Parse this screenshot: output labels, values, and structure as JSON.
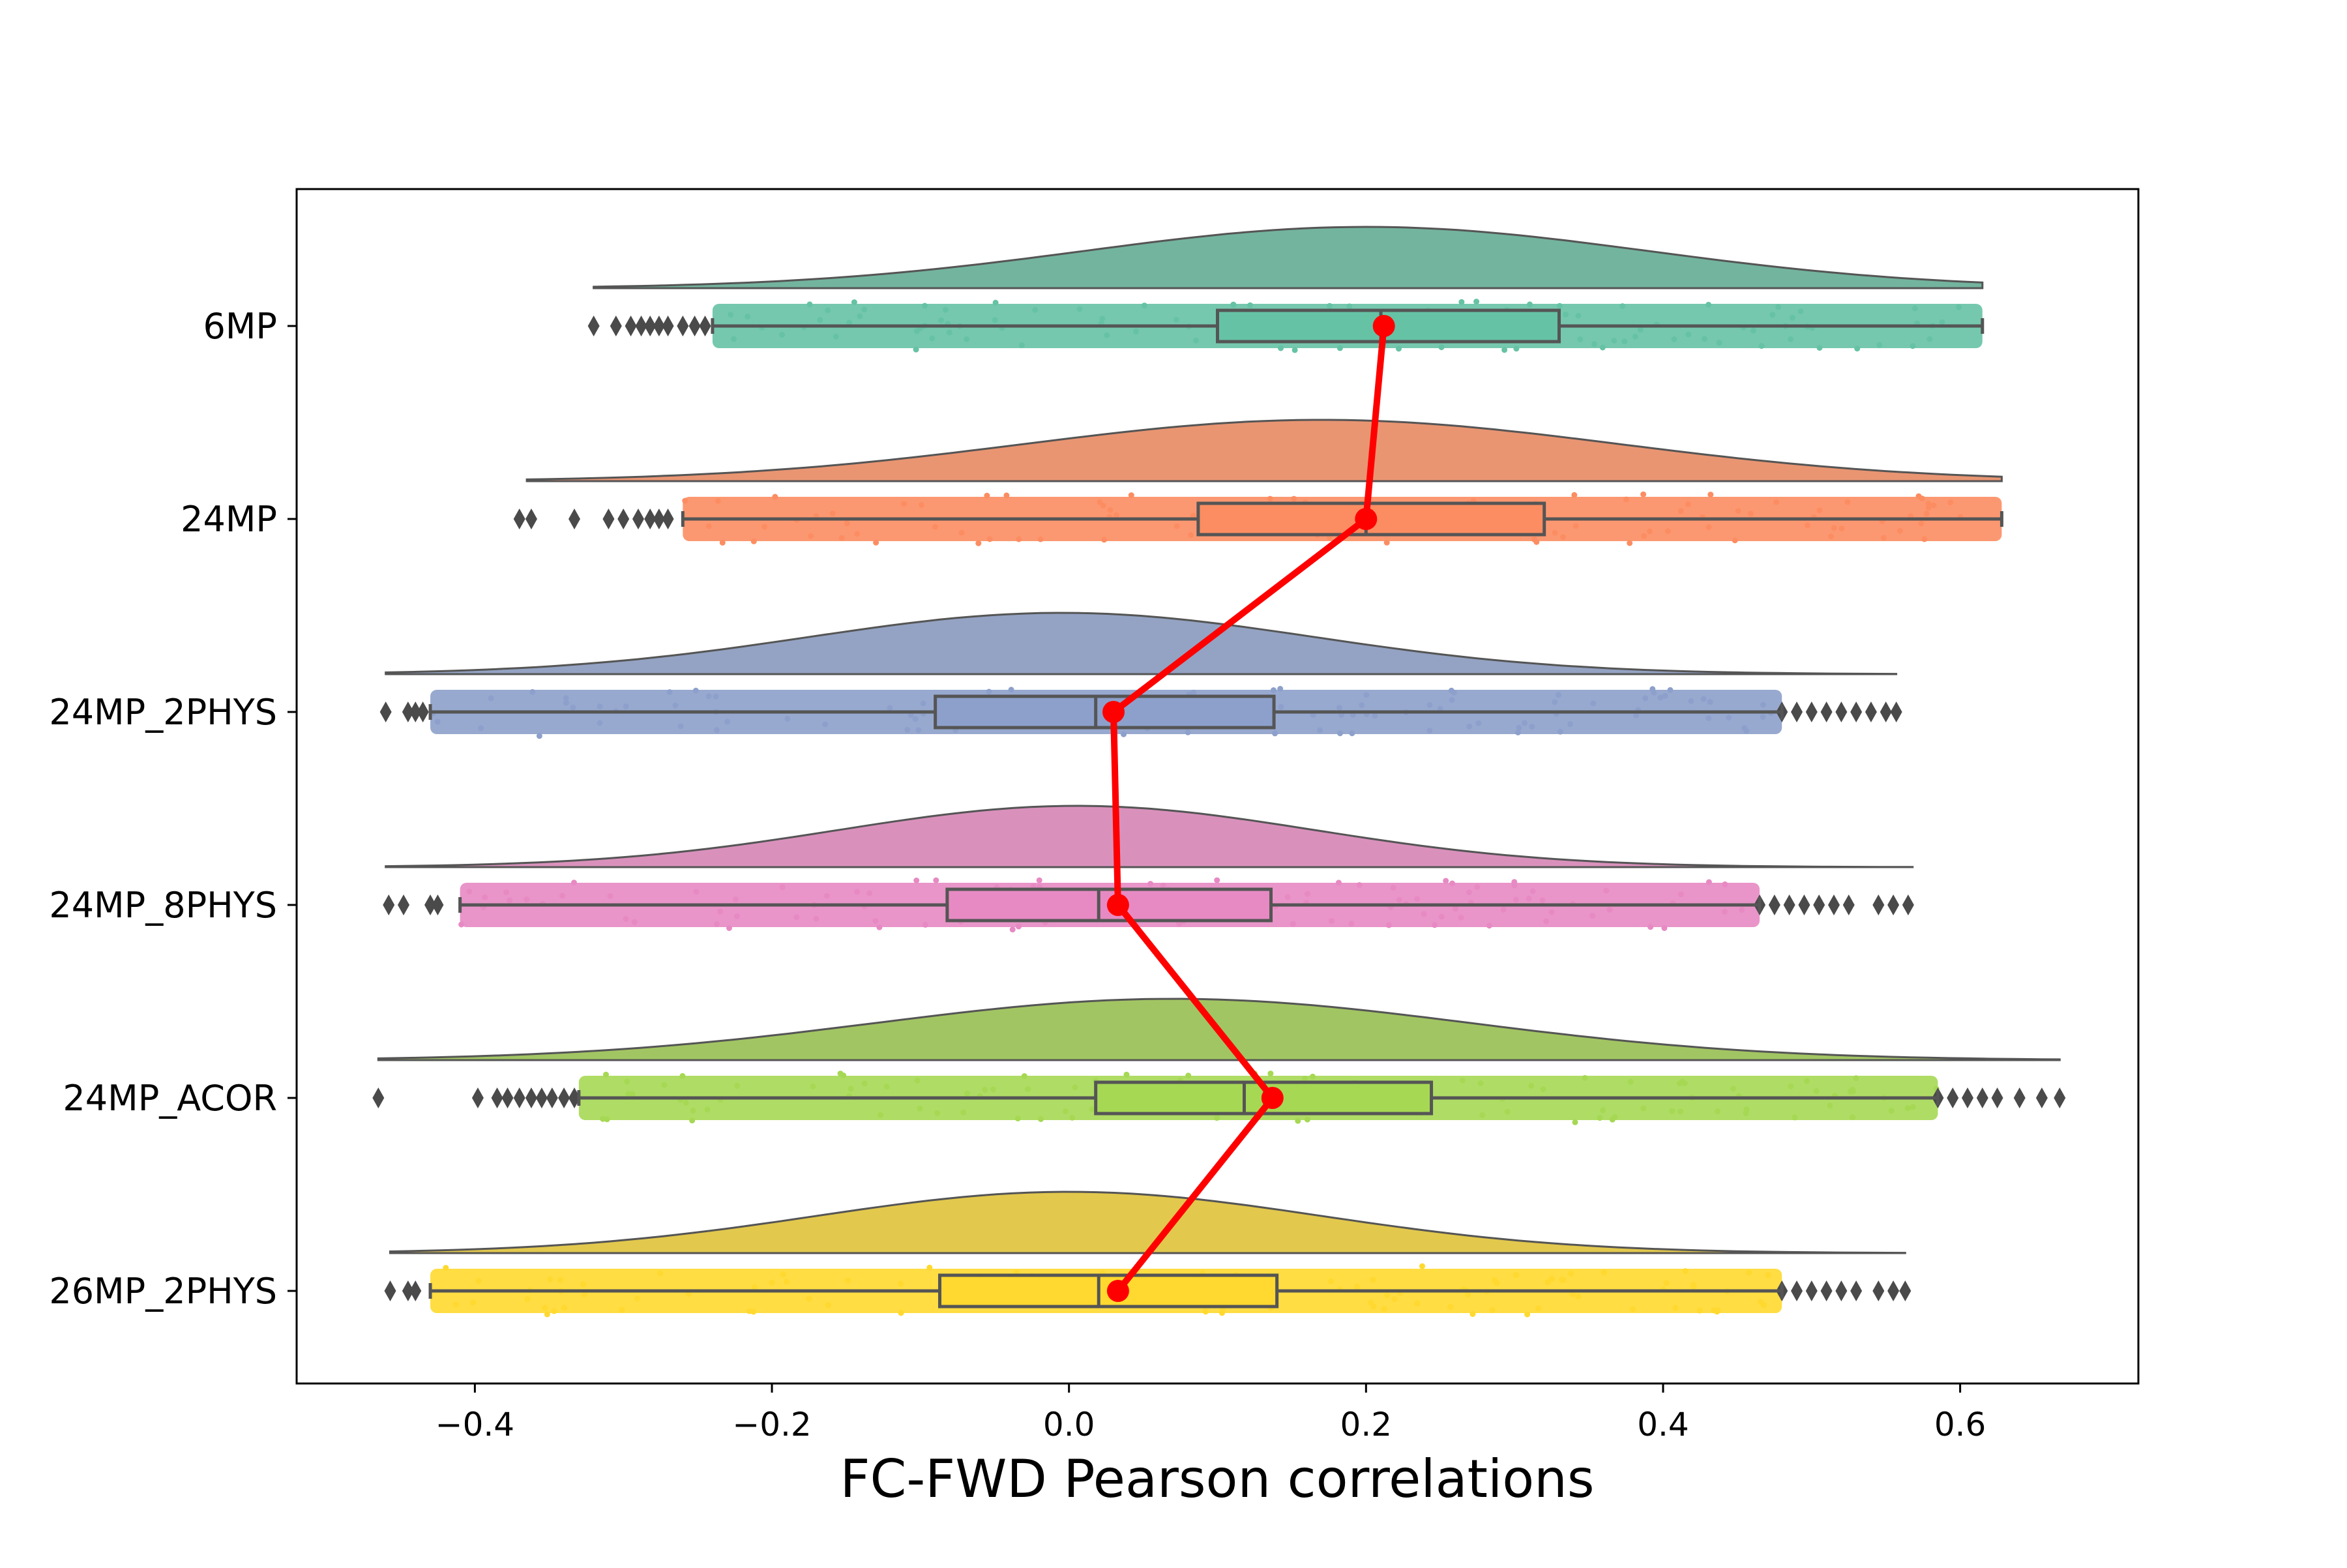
{
  "chart_data": {
    "type": "raincloud",
    "xlabel": "FC-FWD Pearson correlations",
    "ylabel": "",
    "xlim": [
      -0.52,
      0.72
    ],
    "xticks": [
      -0.4,
      -0.2,
      0.0,
      0.2,
      0.4,
      0.6
    ],
    "xtick_labels": [
      "−0.4",
      "−0.2",
      "0.0",
      "0.2",
      "0.4",
      "0.6"
    ],
    "grid": false,
    "categories": [
      "6MP",
      "24MP",
      "24MP_2PHYS",
      "24MP_8PHYS",
      "24MP_ACOR",
      "26MP_2PHYS"
    ],
    "series": [
      {
        "category": "6MP",
        "box_color": "#66c2a5",
        "cloud_color": "#73b49f",
        "q1": 0.1,
        "median": 0.21,
        "q3": 0.33,
        "whisker_low": -0.24,
        "whisker_high": 0.615,
        "mean": 0.212,
        "kde_range": [
          -0.32,
          0.615
        ],
        "kde_mode": 0.2,
        "kde_sd": 0.19,
        "outliers_low": [
          -0.32,
          -0.305,
          -0.295,
          -0.288,
          -0.282,
          -0.276,
          -0.27,
          -0.26,
          -0.252,
          -0.245
        ],
        "outliers_high": []
      },
      {
        "category": "24MP",
        "box_color": "#fc8d62",
        "cloud_color": "#e99572",
        "q1": 0.087,
        "median": 0.2,
        "q3": 0.32,
        "whisker_low": -0.26,
        "whisker_high": 0.628,
        "mean": 0.2,
        "kde_range": [
          -0.365,
          0.628
        ],
        "kde_mode": 0.17,
        "kde_sd": 0.2,
        "outliers_low": [
          -0.37,
          -0.362,
          -0.333,
          -0.31,
          -0.3,
          -0.29,
          -0.282,
          -0.276,
          -0.27
        ],
        "outliers_high": []
      },
      {
        "category": "24MP_2PHYS",
        "box_color": "#8da0cb",
        "cloud_color": "#94a3c3",
        "q1": -0.09,
        "median": 0.018,
        "q3": 0.138,
        "whisker_low": -0.43,
        "whisker_high": 0.48,
        "mean": 0.03,
        "kde_range": [
          -0.46,
          0.557
        ],
        "kde_mode": -0.005,
        "kde_sd": 0.17,
        "outliers_low": [
          -0.46,
          -0.445,
          -0.44,
          -0.435
        ],
        "outliers_high": [
          0.48,
          0.49,
          0.5,
          0.51,
          0.52,
          0.53,
          0.54,
          0.55,
          0.557
        ]
      },
      {
        "category": "24MP_8PHYS",
        "box_color": "#e78ac3",
        "cloud_color": "#d991bc",
        "q1": -0.082,
        "median": 0.02,
        "q3": 0.136,
        "whisker_low": -0.41,
        "whisker_high": 0.465,
        "mean": 0.033,
        "kde_range": [
          -0.46,
          0.568
        ],
        "kde_mode": 0.005,
        "kde_sd": 0.16,
        "outliers_low": [
          -0.458,
          -0.448,
          -0.43,
          -0.425
        ],
        "outliers_high": [
          0.465,
          0.475,
          0.485,
          0.495,
          0.505,
          0.515,
          0.525,
          0.545,
          0.555,
          0.565
        ]
      },
      {
        "category": "24MP_ACOR",
        "box_color": "#a6d854",
        "cloud_color": "#a2c563",
        "q1": 0.018,
        "median": 0.118,
        "q3": 0.244,
        "whisker_low": -0.33,
        "whisker_high": 0.585,
        "mean": 0.137,
        "kde_range": [
          -0.465,
          0.667
        ],
        "kde_mode": 0.07,
        "kde_sd": 0.2,
        "outliers_low": [
          -0.465,
          -0.398,
          -0.385,
          -0.378,
          -0.37,
          -0.362,
          -0.355,
          -0.348,
          -0.34,
          -0.333
        ],
        "outliers_high": [
          0.585,
          0.595,
          0.605,
          0.615,
          0.625,
          0.64,
          0.655,
          0.667
        ]
      },
      {
        "category": "26MP_2PHYS",
        "box_color": "#ffd92f",
        "cloud_color": "#e2c84d",
        "q1": -0.087,
        "median": 0.02,
        "q3": 0.14,
        "whisker_low": -0.43,
        "whisker_high": 0.48,
        "mean": 0.033,
        "kde_range": [
          -0.457,
          0.563
        ],
        "kde_mode": 0.0,
        "kde_sd": 0.17,
        "outliers_low": [
          -0.457,
          -0.445,
          -0.44
        ],
        "outliers_high": [
          0.48,
          0.49,
          0.5,
          0.51,
          0.52,
          0.53,
          0.545,
          0.555,
          0.563
        ]
      }
    ],
    "mean_line_color": "#ff0000",
    "edge_color": "#555555"
  }
}
